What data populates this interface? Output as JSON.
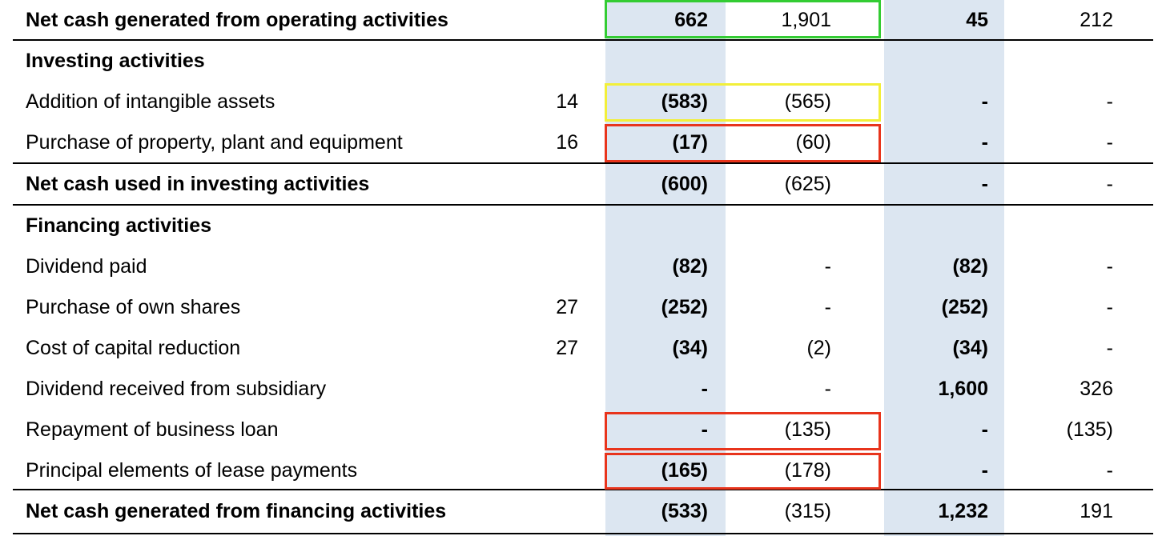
{
  "rows": [
    {
      "label": "Net cash generated from operating activities",
      "note": "",
      "c1": "662",
      "c2": "1,901",
      "c3": "45",
      "c4": "212",
      "bold": true
    },
    {
      "label": "Investing activities",
      "note": "",
      "c1": "",
      "c2": "",
      "c3": "",
      "c4": "",
      "bold": true
    },
    {
      "label": "Addition of intangible assets",
      "note": "14",
      "c1": "(583)",
      "c2": "(565)",
      "c3": "-",
      "c4": "-",
      "bold": false
    },
    {
      "label": "Purchase of property, plant and equipment",
      "note": "16",
      "c1": "(17)",
      "c2": "(60)",
      "c3": "-",
      "c4": "-",
      "bold": false
    },
    {
      "label": "Net cash used in investing activities",
      "note": "",
      "c1": "(600)",
      "c2": "(625)",
      "c3": "-",
      "c4": "-",
      "bold": true
    },
    {
      "label": "Financing activities",
      "note": "",
      "c1": "",
      "c2": "",
      "c3": "",
      "c4": "",
      "bold": true
    },
    {
      "label": "Dividend paid",
      "note": "",
      "c1": "(82)",
      "c2": "-",
      "c3": "(82)",
      "c4": "-",
      "bold": false
    },
    {
      "label": "Purchase of own shares",
      "note": "27",
      "c1": "(252)",
      "c2": "-",
      "c3": "(252)",
      "c4": "-",
      "bold": false
    },
    {
      "label": "Cost of capital reduction",
      "note": "27",
      "c1": "(34)",
      "c2": "(2)",
      "c3": "(34)",
      "c4": "-",
      "bold": false
    },
    {
      "label": "Dividend received from subsidiary",
      "note": "",
      "c1": "-",
      "c2": "-",
      "c3": "1,600",
      "c4": "326",
      "bold": false
    },
    {
      "label": "Repayment of business loan",
      "note": "",
      "c1": "-",
      "c2": "(135)",
      "c3": "-",
      "c4": "(135)",
      "bold": false
    },
    {
      "label": "Principal elements of lease payments",
      "note": "",
      "c1": "(165)",
      "c2": "(178)",
      "c3": "-",
      "c4": "-",
      "bold": false
    },
    {
      "label": "Net cash generated from financing activities",
      "note": "",
      "c1": "(533)",
      "c2": "(315)",
      "c3": "1,232",
      "c4": "191",
      "bold": true
    }
  ],
  "highlight_colors": {
    "green": "#33cc33",
    "yellow": "#f2ef3a",
    "red": "#e8341c"
  },
  "shade_color": "#dce6f1"
}
